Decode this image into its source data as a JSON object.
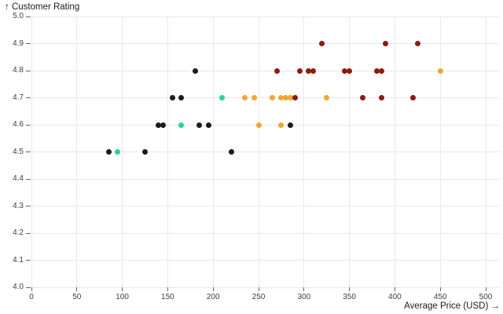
{
  "chart_data": {
    "type": "scatter",
    "title": "",
    "ylabel": "↑ Customer Rating",
    "xlabel": "Average Price (USD) →",
    "xlim": [
      0,
      515
    ],
    "ylim": [
      4.0,
      5.0
    ],
    "grid": true,
    "x_ticks": [
      "0",
      "50",
      "100",
      "150",
      "200",
      "250",
      "300",
      "350",
      "400",
      "450",
      "500"
    ],
    "x_tick_values": [
      0,
      50,
      100,
      150,
      200,
      250,
      300,
      350,
      400,
      450,
      500
    ],
    "y_ticks": [
      "4.0",
      "4.1",
      "4.2",
      "4.3",
      "4.4",
      "4.5",
      "4.6",
      "4.7",
      "4.8",
      "4.9",
      "5.0"
    ],
    "y_tick_values": [
      4.0,
      4.1,
      4.2,
      4.3,
      4.4,
      4.5,
      4.6,
      4.7,
      4.8,
      4.9,
      5.0
    ],
    "colors": {
      "black": "#1c1c1c",
      "darkred": "#8e1b10",
      "orange": "#f2a72e",
      "green": "#27d68c"
    },
    "grid_color": "#e9e9e9",
    "tick_color": "#666666",
    "label_color": "#3f3f3f",
    "points": [
      {
        "x": 85,
        "y": 4.5,
        "c": "black"
      },
      {
        "x": 95,
        "y": 4.5,
        "c": "green"
      },
      {
        "x": 125,
        "y": 4.5,
        "c": "black"
      },
      {
        "x": 220,
        "y": 4.5,
        "c": "black"
      },
      {
        "x": 140,
        "y": 4.6,
        "c": "black"
      },
      {
        "x": 145,
        "y": 4.6,
        "c": "black"
      },
      {
        "x": 165,
        "y": 4.6,
        "c": "green"
      },
      {
        "x": 185,
        "y": 4.6,
        "c": "black"
      },
      {
        "x": 195,
        "y": 4.6,
        "c": "black"
      },
      {
        "x": 250,
        "y": 4.6,
        "c": "orange"
      },
      {
        "x": 275,
        "y": 4.6,
        "c": "orange"
      },
      {
        "x": 285,
        "y": 4.6,
        "c": "black"
      },
      {
        "x": 155,
        "y": 4.7,
        "c": "black"
      },
      {
        "x": 165,
        "y": 4.7,
        "c": "black"
      },
      {
        "x": 210,
        "y": 4.7,
        "c": "green"
      },
      {
        "x": 235,
        "y": 4.7,
        "c": "orange"
      },
      {
        "x": 245,
        "y": 4.7,
        "c": "orange"
      },
      {
        "x": 265,
        "y": 4.7,
        "c": "orange"
      },
      {
        "x": 275,
        "y": 4.7,
        "c": "orange"
      },
      {
        "x": 280,
        "y": 4.7,
        "c": "orange"
      },
      {
        "x": 285,
        "y": 4.7,
        "c": "orange"
      },
      {
        "x": 290,
        "y": 4.7,
        "c": "darkred"
      },
      {
        "x": 325,
        "y": 4.7,
        "c": "orange"
      },
      {
        "x": 365,
        "y": 4.7,
        "c": "darkred"
      },
      {
        "x": 385,
        "y": 4.7,
        "c": "darkred"
      },
      {
        "x": 420,
        "y": 4.7,
        "c": "darkred"
      },
      {
        "x": 180,
        "y": 4.8,
        "c": "black"
      },
      {
        "x": 270,
        "y": 4.8,
        "c": "darkred"
      },
      {
        "x": 295,
        "y": 4.8,
        "c": "darkred"
      },
      {
        "x": 305,
        "y": 4.8,
        "c": "darkred"
      },
      {
        "x": 310,
        "y": 4.8,
        "c": "darkred"
      },
      {
        "x": 345,
        "y": 4.8,
        "c": "darkred"
      },
      {
        "x": 350,
        "y": 4.8,
        "c": "darkred"
      },
      {
        "x": 380,
        "y": 4.8,
        "c": "darkred"
      },
      {
        "x": 385,
        "y": 4.8,
        "c": "darkred"
      },
      {
        "x": 450,
        "y": 4.8,
        "c": "orange"
      },
      {
        "x": 320,
        "y": 4.9,
        "c": "darkred"
      },
      {
        "x": 390,
        "y": 4.9,
        "c": "darkred"
      },
      {
        "x": 425,
        "y": 4.9,
        "c": "darkred"
      }
    ]
  }
}
